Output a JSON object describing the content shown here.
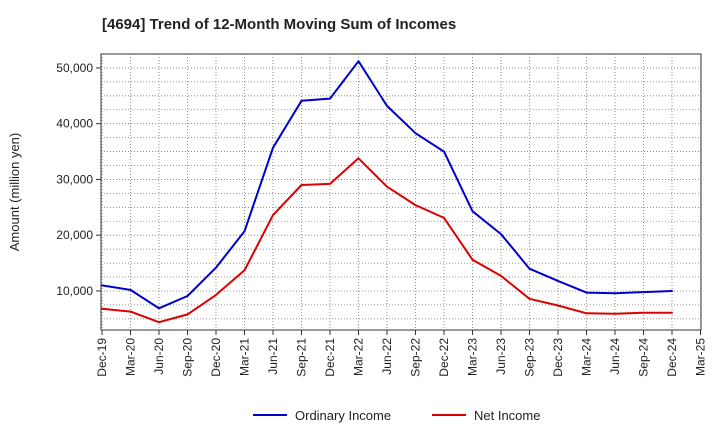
{
  "chart_data": {
    "type": "line",
    "title": "[4694]  Trend of 12-Month Moving Sum of Incomes",
    "xlabel": "",
    "ylabel": "Amount (million yen)",
    "ylim": [
      3000,
      52500
    ],
    "yticks": [
      10000,
      20000,
      30000,
      40000,
      50000
    ],
    "ytick_labels": [
      "10,000",
      "20,000",
      "30,000",
      "40,000",
      "50,000"
    ],
    "grid": true,
    "legend_position": "bottom-center",
    "categories": [
      "Dec-19",
      "Mar-20",
      "Jun-20",
      "Sep-20",
      "Dec-20",
      "Mar-21",
      "Jun-21",
      "Sep-21",
      "Dec-21",
      "Mar-22",
      "Jun-22",
      "Sep-22",
      "Dec-22",
      "Mar-23",
      "Jun-23",
      "Sep-23",
      "Dec-23",
      "Mar-24",
      "Jun-24",
      "Sep-24",
      "Dec-24",
      "Mar-25"
    ],
    "series": [
      {
        "name": "Ordinary Income",
        "color": "#0000cc",
        "values": [
          11000,
          10200,
          6900,
          9100,
          14200,
          20700,
          35700,
          44100,
          44500,
          51200,
          43200,
          38300,
          35000,
          24300,
          20200,
          14000,
          11800,
          9700,
          9600,
          9800,
          10000,
          null
        ]
      },
      {
        "name": "Net Income",
        "color": "#dd0000",
        "values": [
          6800,
          6300,
          4400,
          5800,
          9300,
          13700,
          23600,
          29000,
          29200,
          33800,
          28700,
          25400,
          23100,
          15600,
          12700,
          8600,
          7400,
          6000,
          5900,
          6100,
          6100,
          null
        ]
      }
    ]
  }
}
